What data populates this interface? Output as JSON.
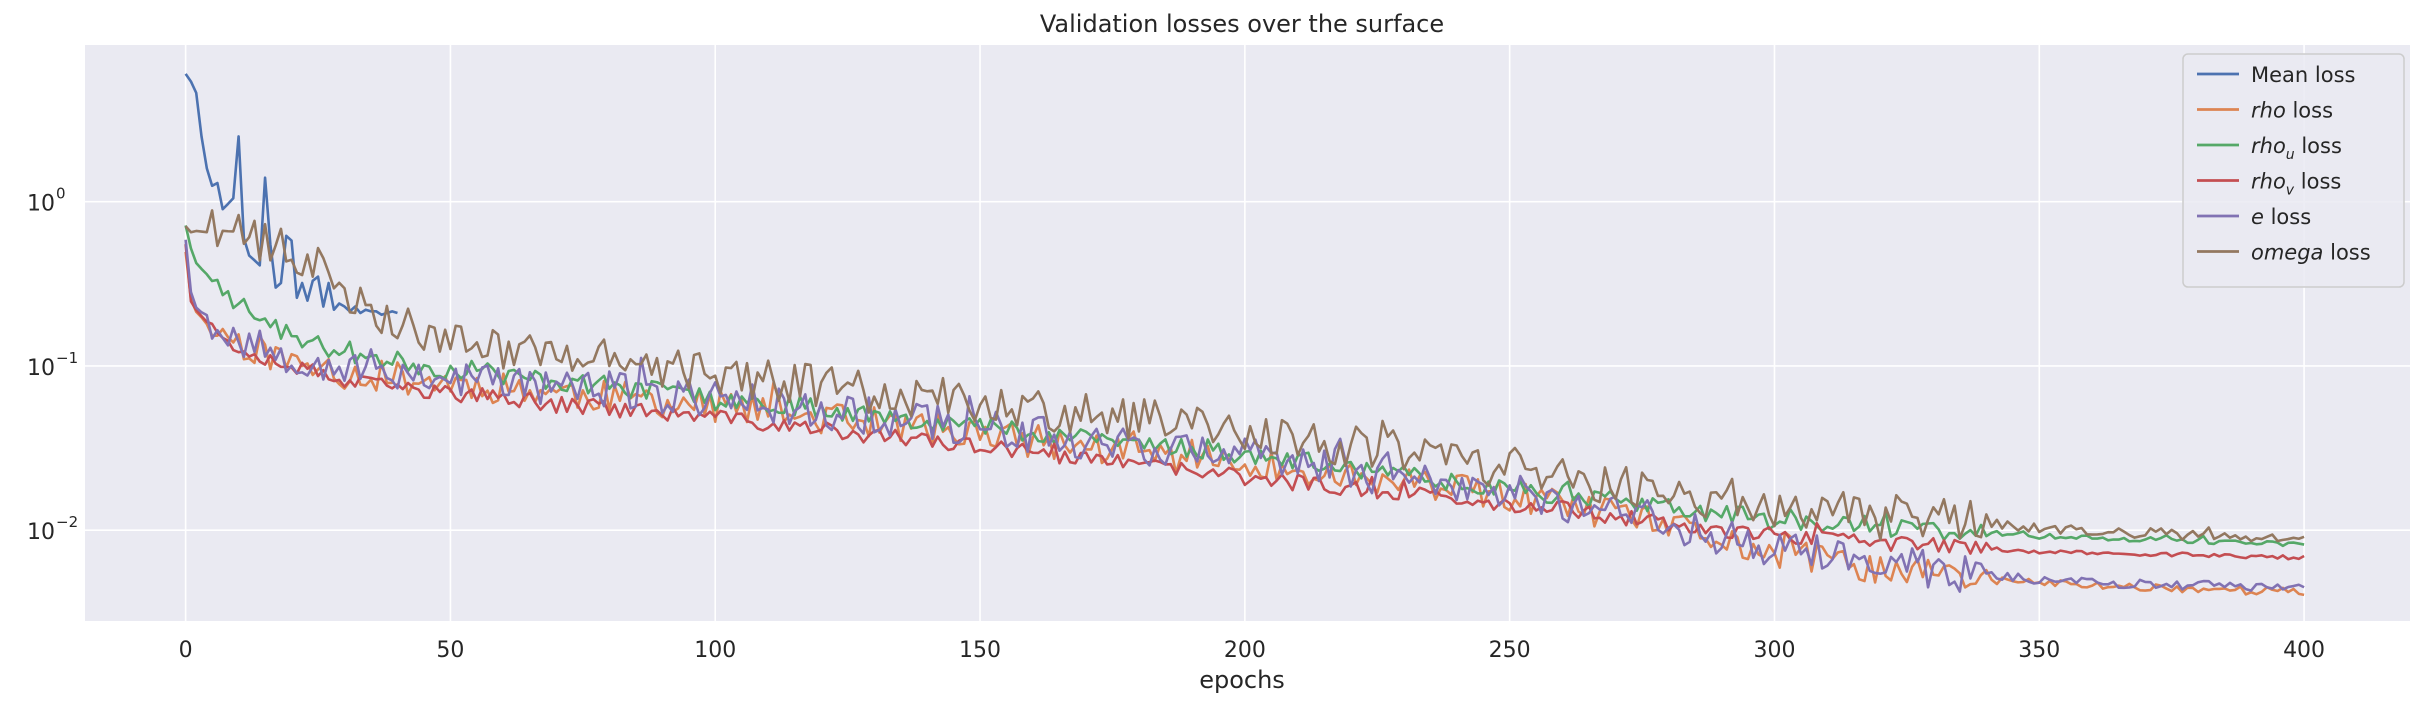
{
  "chart_data": {
    "type": "line",
    "title": "Validation losses over the surface",
    "xlabel": "epochs",
    "ylabel": "",
    "yscale": "log",
    "xlim": [
      -19,
      420
    ],
    "ylim": [
      0.0028,
      9.0
    ],
    "xticks": [
      0,
      50,
      100,
      150,
      200,
      250,
      300,
      350,
      400
    ],
    "xtick_labels": [
      "0",
      "50",
      "100",
      "150",
      "200",
      "250",
      "300",
      "350",
      "400"
    ],
    "yticks": [
      0.01,
      0.1,
      1
    ],
    "ytick_labels": [
      "10",
      "10",
      "10"
    ],
    "ytick_exponents": [
      "−2",
      "−1",
      "0"
    ],
    "grid": true,
    "legend_position": "top-right",
    "colors": {
      "background": "#eaeaf2",
      "grid": "#ffffff",
      "text": "#262626"
    },
    "series": [
      {
        "name_symbol": "",
        "name_sub": "",
        "name_suffix": "Mean loss",
        "color": "#4c72b0",
        "noise": 0,
        "points": [
          [
            0,
            6.0
          ],
          [
            1,
            5.4
          ],
          [
            2,
            4.6
          ],
          [
            3,
            2.5
          ],
          [
            4,
            1.6
          ],
          [
            5,
            1.25
          ],
          [
            6,
            1.3
          ],
          [
            7,
            0.9
          ],
          [
            8,
            0.97
          ],
          [
            9,
            1.05
          ],
          [
            10,
            2.5
          ],
          [
            11,
            0.6
          ],
          [
            12,
            0.47
          ],
          [
            13,
            0.44
          ],
          [
            14,
            0.41
          ],
          [
            15,
            1.4
          ],
          [
            16,
            0.55
          ],
          [
            17,
            0.3
          ],
          [
            18,
            0.32
          ],
          [
            19,
            0.62
          ],
          [
            20,
            0.58
          ],
          [
            21,
            0.26
          ],
          [
            22,
            0.32
          ],
          [
            23,
            0.25
          ],
          [
            24,
            0.33
          ],
          [
            25,
            0.35
          ],
          [
            26,
            0.23
          ],
          [
            27,
            0.32
          ],
          [
            28,
            0.22
          ],
          [
            29,
            0.24
          ],
          [
            30,
            0.23
          ],
          [
            31,
            0.215
          ],
          [
            32,
            0.23
          ],
          [
            33,
            0.21
          ],
          [
            34,
            0.22
          ],
          [
            35,
            0.215
          ],
          [
            36,
            0.215
          ],
          [
            37,
            0.205
          ],
          [
            38,
            0.21
          ],
          [
            39,
            0.215
          ],
          [
            40,
            0.21
          ]
        ]
      },
      {
        "name_symbol": "rho",
        "name_sub": "",
        "name_suffix": " loss",
        "color": "#dd8452",
        "noise": 0.1,
        "seed": 11,
        "points": [
          [
            0,
            0.5
          ],
          [
            1,
            0.26
          ],
          [
            2,
            0.21
          ],
          [
            5,
            0.17
          ],
          [
            10,
            0.14
          ],
          [
            20,
            0.105
          ],
          [
            30,
            0.09
          ],
          [
            50,
            0.079
          ],
          [
            100,
            0.057
          ],
          [
            150,
            0.038
          ],
          [
            200,
            0.025
          ],
          [
            250,
            0.016
          ],
          [
            280,
            0.0105
          ],
          [
            300,
            0.0072
          ],
          [
            320,
            0.0058
          ],
          [
            340,
            0.005
          ],
          [
            360,
            0.0046
          ],
          [
            400,
            0.0042
          ]
        ]
      },
      {
        "name_symbol": "rho",
        "name_sub": "u",
        "name_suffix": " loss",
        "color": "#55a868",
        "noise": 0.06,
        "seed": 23,
        "points": [
          [
            0,
            0.72
          ],
          [
            1,
            0.52
          ],
          [
            2,
            0.42
          ],
          [
            5,
            0.33
          ],
          [
            10,
            0.24
          ],
          [
            20,
            0.15
          ],
          [
            30,
            0.12
          ],
          [
            50,
            0.094
          ],
          [
            100,
            0.065
          ],
          [
            150,
            0.043
          ],
          [
            200,
            0.029
          ],
          [
            250,
            0.018
          ],
          [
            300,
            0.0115
          ],
          [
            350,
            0.0092
          ],
          [
            400,
            0.0082
          ]
        ]
      },
      {
        "name_symbol": "rho",
        "name_sub": "v",
        "name_suffix": " loss",
        "color": "#c44e52",
        "noise": 0.05,
        "seed": 37,
        "points": [
          [
            0,
            0.55
          ],
          [
            1,
            0.25
          ],
          [
            2,
            0.22
          ],
          [
            5,
            0.17
          ],
          [
            10,
            0.13
          ],
          [
            20,
            0.1
          ],
          [
            30,
            0.08
          ],
          [
            50,
            0.068
          ],
          [
            100,
            0.048
          ],
          [
            150,
            0.032
          ],
          [
            200,
            0.021
          ],
          [
            250,
            0.0145
          ],
          [
            300,
            0.0092
          ],
          [
            350,
            0.0074
          ],
          [
            400,
            0.0068
          ]
        ]
      },
      {
        "name_symbol": "e",
        "name_sub": "",
        "name_suffix": " loss",
        "color": "#8172b3",
        "noise": 0.12,
        "seed": 53,
        "points": [
          [
            0,
            0.6
          ],
          [
            1,
            0.28
          ],
          [
            2,
            0.23
          ],
          [
            5,
            0.19
          ],
          [
            10,
            0.15
          ],
          [
            20,
            0.115
          ],
          [
            30,
            0.1
          ],
          [
            50,
            0.085
          ],
          [
            100,
            0.063
          ],
          [
            150,
            0.042
          ],
          [
            200,
            0.028
          ],
          [
            250,
            0.017
          ],
          [
            280,
            0.011
          ],
          [
            300,
            0.0078
          ],
          [
            320,
            0.0062
          ],
          [
            340,
            0.0053
          ],
          [
            360,
            0.0048
          ],
          [
            400,
            0.0044
          ]
        ]
      },
      {
        "name_symbol": "omega",
        "name_sub": "",
        "name_suffix": " loss",
        "color": "#937860",
        "noise": 0.13,
        "seed": 71,
        "points": [
          [
            0,
            0.7
          ],
          [
            1,
            0.66
          ],
          [
            10,
            0.62
          ],
          [
            15,
            0.56
          ],
          [
            20,
            0.49
          ],
          [
            25,
            0.4
          ],
          [
            30,
            0.3
          ],
          [
            35,
            0.23
          ],
          [
            40,
            0.19
          ],
          [
            45,
            0.155
          ],
          [
            50,
            0.14
          ],
          [
            60,
            0.13
          ],
          [
            70,
            0.12
          ],
          [
            80,
            0.11
          ],
          [
            100,
            0.09
          ],
          [
            150,
            0.06
          ],
          [
            200,
            0.04
          ],
          [
            250,
            0.024
          ],
          [
            300,
            0.014
          ],
          [
            350,
            0.0103
          ],
          [
            400,
            0.0087
          ]
        ]
      }
    ]
  }
}
